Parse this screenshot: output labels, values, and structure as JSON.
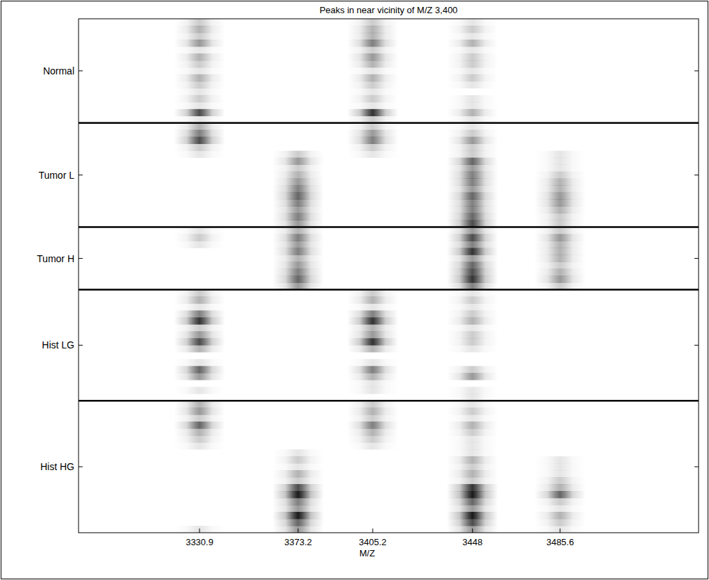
{
  "chart_data": {
    "type": "heatmap",
    "title": "Peaks in near vicinity of M/Z 3,400",
    "x_label": "M/Z",
    "xlim": [
      3279,
      3545
    ],
    "xticks": [
      3330.9,
      3373.2,
      3405.2,
      3448,
      3485.6
    ],
    "peaks": [
      3330.9,
      3373.2,
      3405.2,
      3448,
      3485.6
    ],
    "color": "#000000",
    "color_range": [
      0,
      1
    ],
    "groups": [
      {
        "name": "Normal",
        "rows": [
          [
            0.2,
            0,
            0.2,
            0.1,
            0
          ],
          [
            0.3,
            0,
            0.3,
            0.2,
            0
          ],
          [
            0.2,
            0,
            0.3,
            0.1,
            0
          ],
          [
            0.4,
            0,
            0.5,
            0.3,
            0
          ],
          [
            0.1,
            0,
            0.2,
            0.1,
            0
          ],
          [
            0.3,
            0,
            0.4,
            0.2,
            0
          ],
          [
            0.2,
            0,
            0.3,
            0.2,
            0
          ],
          [
            0.1,
            0,
            0.1,
            0.1,
            0
          ],
          [
            0.3,
            0,
            0.3,
            0.2,
            0
          ],
          [
            0.2,
            0,
            0.2,
            0.1,
            0
          ],
          [
            0.1,
            0,
            0.1,
            0,
            0
          ],
          [
            0.2,
            0,
            0.2,
            0.1,
            0
          ],
          [
            0.1,
            0,
            0.1,
            0.1,
            0
          ],
          [
            0.7,
            0,
            0.8,
            0.3,
            0
          ],
          [
            0.1,
            0,
            0.2,
            0.1,
            0
          ]
        ]
      },
      {
        "name": "Tumor L",
        "rows": [
          [
            0.3,
            0,
            0.2,
            0.1,
            0
          ],
          [
            0.5,
            0,
            0.4,
            0.2,
            0
          ],
          [
            0.7,
            0,
            0.5,
            0.4,
            0
          ],
          [
            0.2,
            0,
            0.2,
            0.2,
            0
          ],
          [
            0.1,
            0.2,
            0.1,
            0.2,
            0.1
          ],
          [
            0,
            0.4,
            0,
            0.6,
            0.1
          ],
          [
            0,
            0.2,
            0,
            0.4,
            0.1
          ],
          [
            0,
            0.3,
            0,
            0.5,
            0.2
          ],
          [
            0,
            0.4,
            0,
            0.5,
            0.3
          ],
          [
            0,
            0.5,
            0,
            0.4,
            0.3
          ],
          [
            0,
            0.6,
            0,
            0.6,
            0.4
          ],
          [
            0,
            0.5,
            0,
            0.5,
            0.4
          ],
          [
            0,
            0.4,
            0,
            0.5,
            0.3
          ],
          [
            0,
            0.5,
            0,
            0.6,
            0.2
          ],
          [
            0,
            0.4,
            0,
            0.7,
            0.2
          ]
        ]
      },
      {
        "name": "Tumor H",
        "rows": [
          [
            0.1,
            0.3,
            0,
            0.4,
            0.2
          ],
          [
            0.2,
            0.5,
            0,
            0.7,
            0.4
          ],
          [
            0.1,
            0.4,
            0,
            0.5,
            0.3
          ],
          [
            0,
            0.5,
            0,
            0.8,
            0.3
          ],
          [
            0,
            0.3,
            0,
            0.4,
            0.3
          ],
          [
            0,
            0.4,
            0,
            0.6,
            0.2
          ],
          [
            0,
            0.5,
            0,
            0.7,
            0.3
          ],
          [
            0,
            0.6,
            0,
            0.8,
            0.4
          ],
          [
            0,
            0.4,
            0,
            0.5,
            0.2
          ]
        ]
      },
      {
        "name": "Hist LG",
        "rows": [
          [
            0.2,
            0,
            0.2,
            0.1,
            0
          ],
          [
            0.3,
            0,
            0.3,
            0.2,
            0
          ],
          [
            0.1,
            0,
            0.1,
            0.1,
            0
          ],
          [
            0.5,
            0,
            0.5,
            0.2,
            0
          ],
          [
            0.8,
            0,
            0.8,
            0.3,
            0
          ],
          [
            0.2,
            0,
            0.3,
            0.1,
            0
          ],
          [
            0.4,
            0,
            0.4,
            0.2,
            0
          ],
          [
            0.7,
            0,
            0.8,
            0.2,
            0
          ],
          [
            0.3,
            0,
            0.3,
            0.1,
            0
          ],
          [
            0,
            0,
            0,
            0,
            0
          ],
          [
            0.1,
            0,
            0.1,
            0,
            0
          ],
          [
            0.6,
            0,
            0.5,
            0.2,
            0
          ],
          [
            0.4,
            0,
            0.3,
            0.4,
            0
          ],
          [
            0,
            0,
            0.1,
            0,
            0
          ],
          [
            0.1,
            0,
            0.1,
            0.1,
            0
          ],
          [
            0,
            0,
            0,
            0.1,
            0
          ]
        ]
      },
      {
        "name": "Hist HG",
        "rows": [
          [
            0.3,
            0,
            0.2,
            0.1,
            0
          ],
          [
            0.4,
            0,
            0.3,
            0.2,
            0
          ],
          [
            0.2,
            0,
            0.2,
            0.1,
            0
          ],
          [
            0.6,
            0,
            0.5,
            0.3,
            0
          ],
          [
            0.3,
            0,
            0.3,
            0.2,
            0
          ],
          [
            0.2,
            0,
            0.2,
            0.1,
            0
          ],
          [
            0.1,
            0,
            0.1,
            0.1,
            0
          ],
          [
            0,
            0.1,
            0,
            0.1,
            0
          ],
          [
            0,
            0.2,
            0,
            0.3,
            0.1
          ],
          [
            0,
            0.1,
            0,
            0.2,
            0.1
          ],
          [
            0,
            0.3,
            0,
            0.3,
            0.1
          ],
          [
            0,
            0.2,
            0,
            0.2,
            0.2
          ],
          [
            0,
            0.7,
            0,
            0.8,
            0.3
          ],
          [
            0,
            0.9,
            0,
            0.9,
            0.6
          ],
          [
            0,
            0.5,
            0,
            0.6,
            0.2
          ],
          [
            0,
            0.4,
            0,
            0.4,
            0.1
          ],
          [
            0,
            0.9,
            0,
            0.9,
            0.3
          ],
          [
            0,
            0.6,
            0,
            0.7,
            0.2
          ],
          [
            0.1,
            0.4,
            0,
            0.4,
            0.1
          ]
        ]
      }
    ]
  }
}
